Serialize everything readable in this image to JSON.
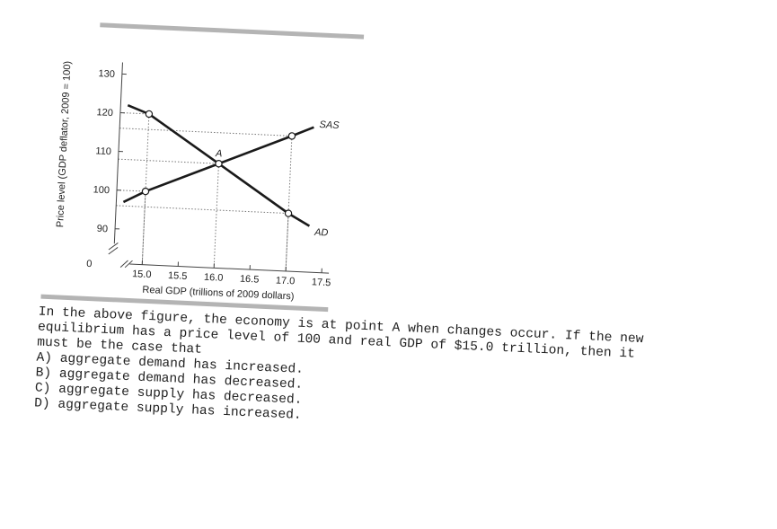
{
  "chart_data": {
    "type": "line",
    "xlabel": "Real GDP (trillions of 2009 dollars)",
    "ylabel": "Price level (GDP deflator, 2009 = 100)",
    "x_ticks": [
      "15.0",
      "15.5",
      "16.0",
      "16.5",
      "17.0",
      "17.5"
    ],
    "y_ticks": [
      "90",
      "100",
      "110",
      "120",
      "130"
    ],
    "origin_label": "0",
    "xlim": [
      14.6,
      17.6
    ],
    "ylim": [
      85,
      133
    ],
    "series": [
      {
        "name": "SAS",
        "points": [
          [
            14.7,
            97
          ],
          [
            15.0,
            100
          ],
          [
            16.0,
            108
          ],
          [
            17.0,
            116
          ],
          [
            17.3,
            118.5
          ]
        ]
      },
      {
        "name": "AD",
        "points": [
          [
            14.7,
            122
          ],
          [
            15.0,
            120
          ],
          [
            16.0,
            108
          ],
          [
            17.0,
            96
          ],
          [
            17.3,
            93
          ]
        ]
      }
    ],
    "marked_points": [
      {
        "x": 15.0,
        "y": 120
      },
      {
        "x": 15.0,
        "y": 100
      },
      {
        "x": 16.0,
        "y": 108,
        "label": "A"
      },
      {
        "x": 17.0,
        "y": 116
      },
      {
        "x": 17.0,
        "y": 96
      }
    ],
    "curve_labels": [
      "SAS",
      "AD"
    ]
  },
  "question": {
    "lines": [
      "In the above figure, the economy is at point A when changes occur. If the new",
      "equilibrium has a price level of 100 and real GDP of $15.0 trillion, then it",
      "must be the case that"
    ],
    "options": [
      "A) aggregate demand has increased.",
      "B) aggregate demand has decreased.",
      "C) aggregate supply has decreased.",
      "D) aggregate supply has increased."
    ]
  }
}
